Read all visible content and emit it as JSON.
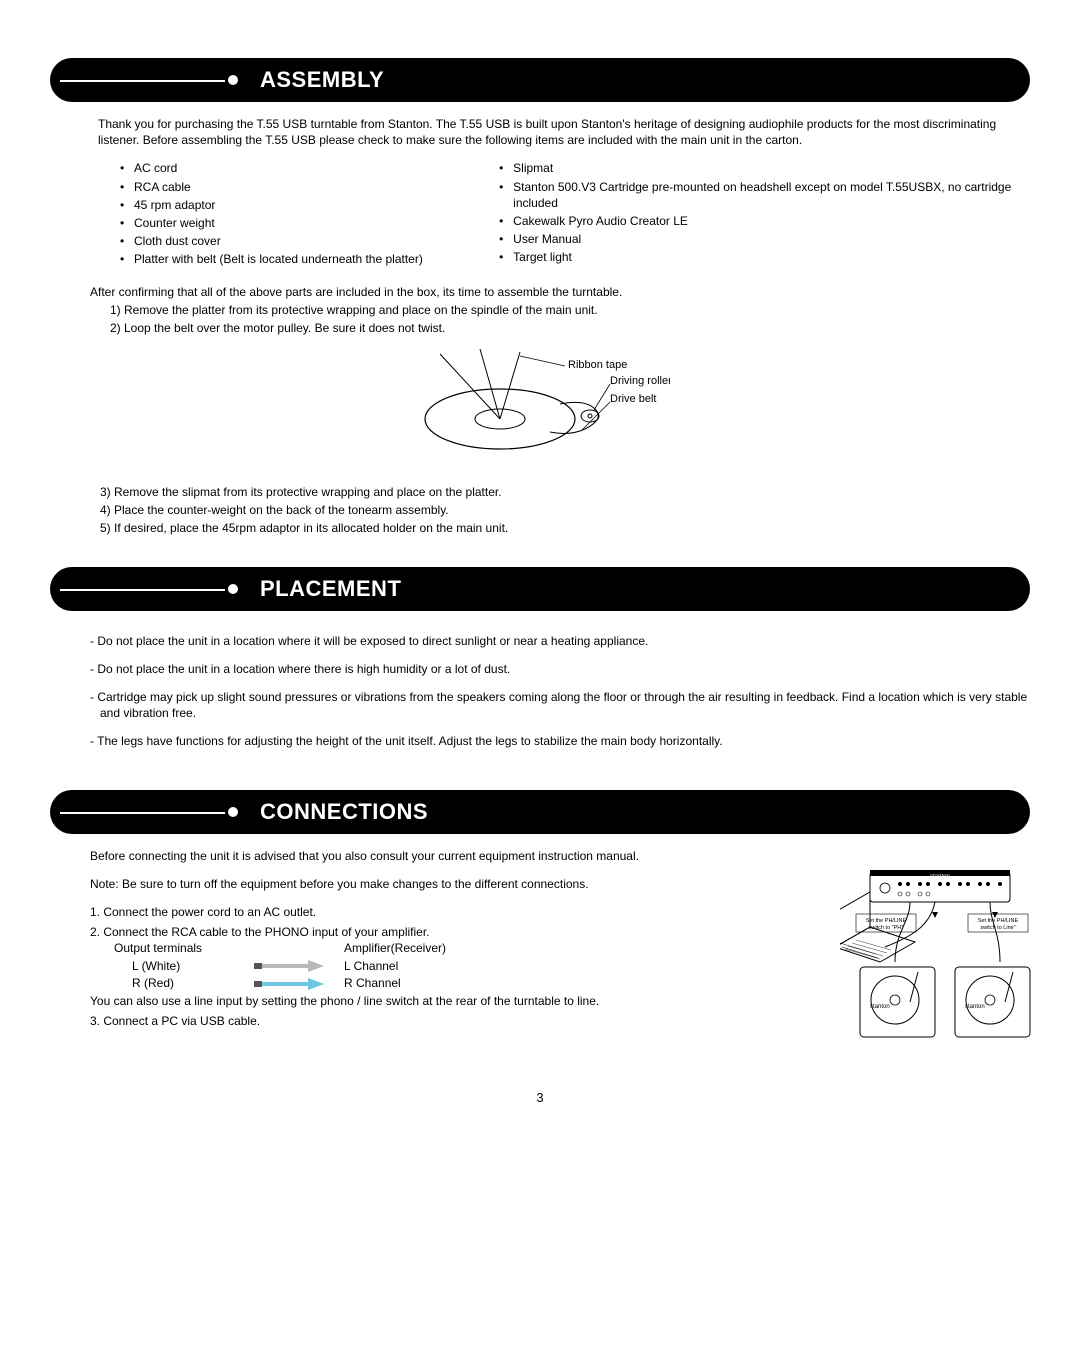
{
  "colors": {
    "header_bg": "#000000",
    "header_text": "#ffffff",
    "body_text": "#000000",
    "arrow_white": "#b8b8b8",
    "arrow_red": "#6ec5e0"
  },
  "assembly": {
    "title": "ASSEMBLY",
    "intro": "Thank you for purchasing the T.55 USB turntable from Stanton. The T.55 USB is built upon Stanton's heritage of designing audiophile products for the most discriminating listener. Before assembling the T.55 USB please check to make sure the following items are included with the main unit in the carton.",
    "items_left": [
      "AC cord",
      "RCA cable",
      "45 rpm adaptor",
      "Counter weight",
      "Cloth dust cover",
      "Platter with belt (Belt is located underneath the platter)"
    ],
    "items_right": [
      "Slipmat",
      "Stanton 500.V3 Cartridge pre-mounted on headshell except on model T.55USBX, no cartridge included",
      "Cakewalk Pyro Audio Creator LE",
      "User Manual",
      "Target light"
    ],
    "confirm": "After confirming that all of the above parts are included in the box, its time to assemble the turntable.",
    "steps_a": [
      "1) Remove the platter from its protective wrapping and place on the spindle of the main unit.",
      "2) Loop the belt over the motor pulley.  Be sure it does not twist."
    ],
    "diagram_labels": {
      "ribbon": "Ribbon tape",
      "roller": "Driving roller",
      "belt": "Drive belt"
    },
    "steps_b": [
      "3) Remove the slipmat from its protective wrapping and place on the platter.",
      "4) Place the counter-weight on the back of the tonearm assembly.",
      "5) If desired, place the 45rpm adaptor in its allocated holder on the main unit."
    ]
  },
  "placement": {
    "title": "PLACEMENT",
    "items": [
      "- Do not place the unit in a location where it will be exposed to direct sunlight or near a heating appliance.",
      "- Do not place the unit in a location where there is high humidity or a lot of dust.",
      "- Cartridge may pick up slight sound pressures or vibrations from the speakers coming along the floor or through the air resulting in feedback. Find a location which is very stable and vibration free.",
      "- The legs have functions for adjusting the height of the unit itself. Adjust the legs to stabilize the main body horizontally."
    ]
  },
  "connections": {
    "title": "CONNECTIONS",
    "intro1": "Before connecting the unit it is advised that you also consult your current equipment instruction manual.",
    "intro2": "Note: Be sure to turn off the equipment before you make changes to the different connections.",
    "step1": "1. Connect the power cord to an AC outlet.",
    "step2": "2. Connect the RCA cable to the PHONO input of your amplifier.",
    "table": {
      "head": {
        "c1": "Output terminals",
        "c3": "Amplifier(Receiver)"
      },
      "rows": [
        {
          "c1": "L (White)",
          "c3": "L Channel",
          "arrow_color": "#b8b8b8"
        },
        {
          "c1": "R (Red)",
          "c3": "R Channel",
          "arrow_color": "#6ec5e0"
        }
      ]
    },
    "step2_note": "You can also use a line input by setting the phono / line switch at the rear of the turntable to line.",
    "step3": "3. Connect a PC via USB cable.",
    "fig_labels": {
      "brand": "stanton",
      "left": "Set the PH/LINE switch to \"PH\"",
      "right": "Set the PH/LINE switch to Line\""
    }
  },
  "page_number": "3"
}
